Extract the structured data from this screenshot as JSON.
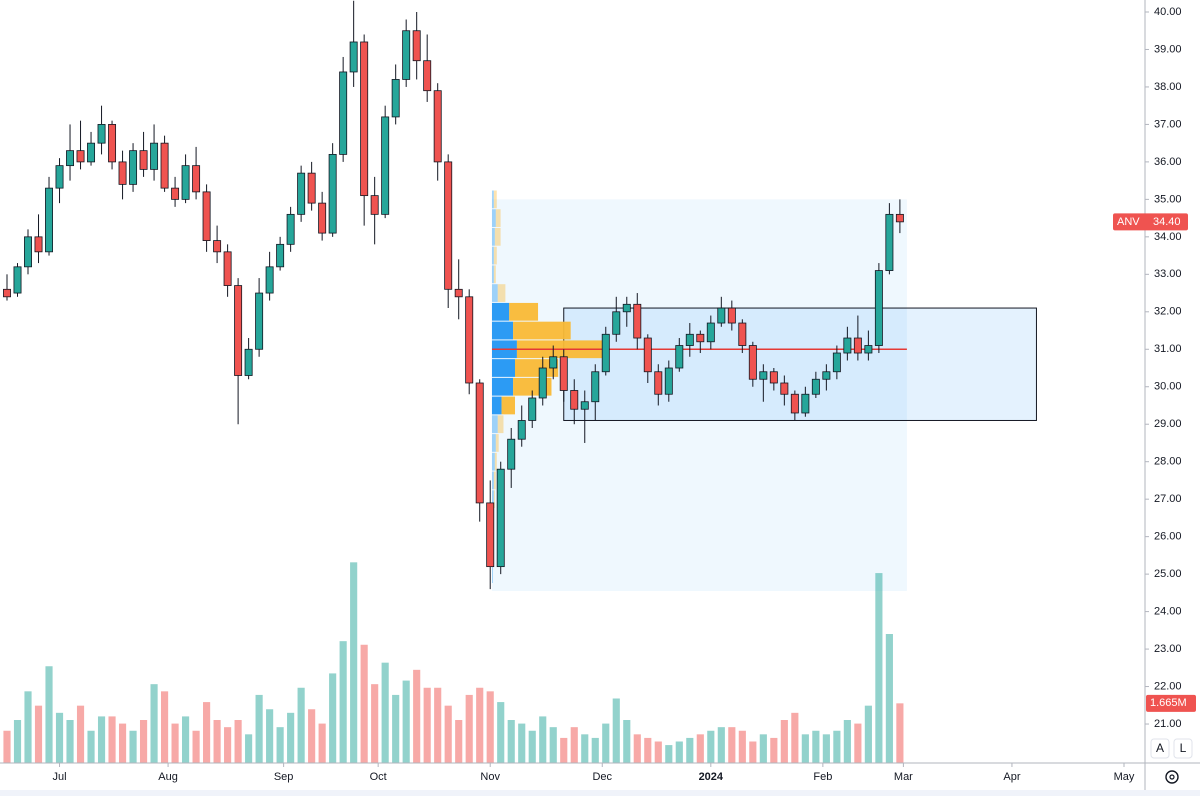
{
  "chart_data": {
    "type": "candlestick",
    "symbol": "ANV",
    "up_color": "#26a69a",
    "down_color": "#ef5350",
    "x": [
      0,
      3,
      6,
      9,
      12,
      15,
      18,
      21,
      24,
      27,
      30,
      33,
      36,
      39,
      42,
      45,
      48,
      51,
      54,
      57,
      60,
      63,
      66,
      69,
      72,
      75,
      78,
      81,
      84,
      87,
      90,
      93,
      96,
      99,
      102,
      105,
      108,
      111,
      114,
      117,
      120,
      123,
      126,
      129,
      132,
      135,
      138,
      141,
      144,
      147,
      150,
      153,
      156,
      159,
      162,
      165,
      168,
      171,
      174,
      177,
      180,
      183,
      186,
      189,
      192,
      195,
      198,
      201,
      204,
      207,
      210,
      213,
      216,
      219,
      222,
      225,
      228,
      231,
      234,
      237,
      240,
      243,
      246,
      249,
      252,
      255
    ],
    "open": [
      32.6,
      32.5,
      33.2,
      34.0,
      33.6,
      35.3,
      35.9,
      36.3,
      36.0,
      36.5,
      37.0,
      36.0,
      35.4,
      36.3,
      35.8,
      36.5,
      35.3,
      35.0,
      35.9,
      35.2,
      33.9,
      33.6,
      32.7,
      30.3,
      31.0,
      32.5,
      33.2,
      33.8,
      34.6,
      35.7,
      34.9,
      34.1,
      36.2,
      38.4,
      39.2,
      35.1,
      34.6,
      37.2,
      38.2,
      39.5,
      38.7,
      37.9,
      36.0,
      32.6,
      32.4,
      30.1,
      26.9,
      25.2,
      27.8,
      28.6,
      29.1,
      29.7,
      30.5,
      30.8,
      29.9,
      29.4,
      29.6,
      30.4,
      31.4,
      32.0,
      32.2,
      31.3,
      30.4,
      29.8,
      30.5,
      31.1,
      31.4,
      31.2,
      31.7,
      32.1,
      31.7,
      31.1,
      30.2,
      30.4,
      30.1,
      29.8,
      29.3,
      29.8,
      30.2,
      30.4,
      30.9,
      31.3,
      30.9,
      31.1,
      33.1,
      34.6
    ],
    "high": [
      33.0,
      33.3,
      34.2,
      34.6,
      35.6,
      36.1,
      37.0,
      37.1,
      36.8,
      37.5,
      37.1,
      36.3,
      36.5,
      36.8,
      37.0,
      36.7,
      35.6,
      36.2,
      36.4,
      35.4,
      34.3,
      33.8,
      32.9,
      31.3,
      32.9,
      33.6,
      34.0,
      34.8,
      35.9,
      36.0,
      35.2,
      36.5,
      38.8,
      40.3,
      39.4,
      35.6,
      37.5,
      38.6,
      39.8,
      40.0,
      39.4,
      38.1,
      36.2,
      33.4,
      32.6,
      30.2,
      27.5,
      28.0,
      28.9,
      29.5,
      29.9,
      30.8,
      31.1,
      31.0,
      30.2,
      29.9,
      30.6,
      31.6,
      32.4,
      32.4,
      32.5,
      31.4,
      30.6,
      30.7,
      31.3,
      31.7,
      31.5,
      31.9,
      32.4,
      32.3,
      31.8,
      31.2,
      30.6,
      30.5,
      30.3,
      29.9,
      30.0,
      30.4,
      30.6,
      31.1,
      31.6,
      31.9,
      31.5,
      33.3,
      34.9,
      35.0
    ],
    "low": [
      32.3,
      32.4,
      33.0,
      33.3,
      33.5,
      34.9,
      35.5,
      35.8,
      35.9,
      36.2,
      35.8,
      35.0,
      35.2,
      35.6,
      35.5,
      35.2,
      34.8,
      34.9,
      35.0,
      33.6,
      33.3,
      32.4,
      29.0,
      30.2,
      30.8,
      32.3,
      33.1,
      33.6,
      34.4,
      34.7,
      33.9,
      34.0,
      36.0,
      38.0,
      34.3,
      33.8,
      34.5,
      37.0,
      38.0,
      38.2,
      37.6,
      35.5,
      32.1,
      31.8,
      29.8,
      26.4,
      24.6,
      25.0,
      27.3,
      28.4,
      28.9,
      29.5,
      30.2,
      29.6,
      29.0,
      28.5,
      29.1,
      30.3,
      31.2,
      31.6,
      31.0,
      30.1,
      29.5,
      29.6,
      30.4,
      30.8,
      30.9,
      31.0,
      31.6,
      31.5,
      30.9,
      30.0,
      29.6,
      29.9,
      29.5,
      29.1,
      29.2,
      29.7,
      29.9,
      30.2,
      30.7,
      30.7,
      30.7,
      30.9,
      33.0,
      34.1
    ],
    "close": [
      32.4,
      33.2,
      34.0,
      33.6,
      35.3,
      35.9,
      36.3,
      36.0,
      36.5,
      37.0,
      36.0,
      35.4,
      36.3,
      35.8,
      36.5,
      35.3,
      35.0,
      35.9,
      35.2,
      33.9,
      33.6,
      32.7,
      30.3,
      31.0,
      32.5,
      33.2,
      33.8,
      34.6,
      35.7,
      34.9,
      34.1,
      36.2,
      38.4,
      39.2,
      35.1,
      34.6,
      37.2,
      38.2,
      39.5,
      38.7,
      37.9,
      36.0,
      32.6,
      32.4,
      30.1,
      26.9,
      25.2,
      27.8,
      28.6,
      29.1,
      29.7,
      30.5,
      30.8,
      29.9,
      29.4,
      29.6,
      30.4,
      31.4,
      32.0,
      32.2,
      31.3,
      30.4,
      29.8,
      30.5,
      31.1,
      31.4,
      31.2,
      31.7,
      32.1,
      31.7,
      31.1,
      30.2,
      30.4,
      30.1,
      29.8,
      29.3,
      29.8,
      30.2,
      30.4,
      30.9,
      31.3,
      30.9,
      31.1,
      33.1,
      34.6,
      34.4
    ],
    "volume": [
      0.9,
      1.2,
      2.0,
      1.6,
      2.7,
      1.4,
      1.2,
      1.6,
      0.9,
      1.3,
      1.3,
      1.1,
      0.9,
      1.2,
      2.2,
      2.0,
      1.1,
      1.3,
      0.9,
      1.7,
      1.2,
      1.0,
      1.2,
      0.8,
      1.9,
      1.5,
      1.0,
      1.4,
      2.1,
      1.5,
      1.1,
      2.5,
      3.4,
      5.6,
      3.3,
      2.2,
      2.8,
      1.9,
      2.3,
      2.6,
      2.1,
      2.1,
      1.6,
      1.2,
      1.9,
      2.1,
      2.0,
      1.7,
      1.2,
      1.1,
      0.9,
      1.3,
      1.0,
      0.7,
      1.0,
      0.8,
      0.7,
      1.1,
      1.8,
      1.2,
      0.8,
      0.7,
      0.6,
      0.5,
      0.6,
      0.7,
      0.8,
      0.9,
      1.0,
      1.0,
      0.9,
      0.6,
      0.8,
      0.7,
      1.2,
      1.4,
      0.8,
      0.9,
      0.8,
      0.9,
      1.2,
      1.1,
      1.6,
      5.3,
      3.6,
      1.665
    ],
    "volume_lim": [
      0,
      6
    ],
    "last_close_label": "34.40",
    "last_volume_label": "1.665M",
    "xlim": [
      -2,
      325
    ],
    "ylim": [
      19.96,
      40.32
    ],
    "xticks": [
      {
        "value": 15,
        "label": "Jul"
      },
      {
        "value": 46,
        "label": "Aug"
      },
      {
        "value": 79,
        "label": "Sep"
      },
      {
        "value": 106,
        "label": "Oct"
      },
      {
        "value": 138,
        "label": "Nov"
      },
      {
        "value": 170,
        "label": "Dec"
      },
      {
        "value": 201,
        "label": "2024"
      },
      {
        "value": 233,
        "label": "Feb"
      },
      {
        "value": 256,
        "label": "Mar"
      },
      {
        "value": 287,
        "label": "Apr"
      },
      {
        "value": 319,
        "label": "May"
      }
    ],
    "yticks": [
      {
        "value": 21,
        "label": "21.00"
      },
      {
        "value": 22,
        "label": "22.00"
      },
      {
        "value": 23,
        "label": "23.00"
      },
      {
        "value": 24,
        "label": "24.00"
      },
      {
        "value": 25,
        "label": "25.00"
      },
      {
        "value": 26,
        "label": "26.00"
      },
      {
        "value": 27,
        "label": "27.00"
      },
      {
        "value": 28,
        "label": "28.00"
      },
      {
        "value": 29,
        "label": "29.00"
      },
      {
        "value": 30,
        "label": "30.00"
      },
      {
        "value": 31,
        "label": "31.00"
      },
      {
        "value": 32,
        "label": "32.00"
      },
      {
        "value": 33,
        "label": "33.00"
      },
      {
        "value": 34,
        "label": "34.00"
      },
      {
        "value": 35,
        "label": "35.00"
      },
      {
        "value": 36,
        "label": "36.00"
      },
      {
        "value": 37,
        "label": "37.00"
      },
      {
        "value": 38,
        "label": "38.00"
      },
      {
        "value": 39,
        "label": "39.00"
      },
      {
        "value": 40,
        "label": "40.00"
      }
    ],
    "volume_profile": {
      "x": [
        138.5,
        257
      ],
      "y": [
        24.55,
        35.0
      ],
      "poc": 31.0,
      "value_area": [
        29.5,
        32.0
      ],
      "scale_max": 125,
      "up_color": "#2196f3",
      "down_color": "#f9b936",
      "prices": [
        25,
        25.5,
        26,
        26.5,
        27,
        27.5,
        28,
        28.5,
        29,
        29.5,
        30,
        30.5,
        31,
        31.5,
        32,
        32.5,
        33,
        33.5,
        34,
        34.5,
        35
      ],
      "up": [
        1,
        1,
        1,
        1,
        2,
        2,
        3,
        4,
        6,
        10,
        22,
        24,
        26,
        22,
        18,
        6,
        2,
        2,
        3,
        4,
        2
      ],
      "down": [
        0,
        0,
        0,
        1,
        1,
        2,
        2,
        3,
        6,
        14,
        40,
        45,
        95,
        60,
        30,
        8,
        2,
        3,
        6,
        5,
        3
      ]
    },
    "box": {
      "x": [
        159,
        294
      ],
      "y": [
        29.1,
        32.1
      ]
    }
  },
  "toolbar": {
    "auto": "A",
    "log": "L"
  }
}
